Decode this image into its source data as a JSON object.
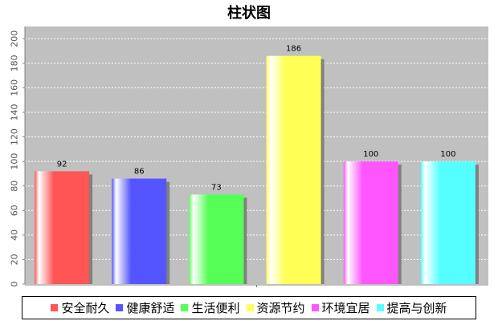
{
  "chart_data": {
    "type": "bar",
    "title": "柱状图",
    "categories": [
      "安全耐久",
      "健康舒适",
      "生活便利",
      "资源节约",
      "环境宜居",
      "提高与创新"
    ],
    "values": [
      92,
      86,
      73,
      186,
      100,
      100
    ],
    "colors": [
      "#ff5555",
      "#5555ff",
      "#55ff55",
      "#ffff55",
      "#ff55ff",
      "#55ffff"
    ],
    "ylim": [
      0,
      210
    ],
    "yticks": [
      0,
      20,
      40,
      60,
      80,
      100,
      120,
      140,
      160,
      180,
      200
    ],
    "xlabel": "",
    "ylabel": "",
    "grid": true,
    "legend_position": "bottom",
    "plot_background": "#c0c0c0"
  }
}
